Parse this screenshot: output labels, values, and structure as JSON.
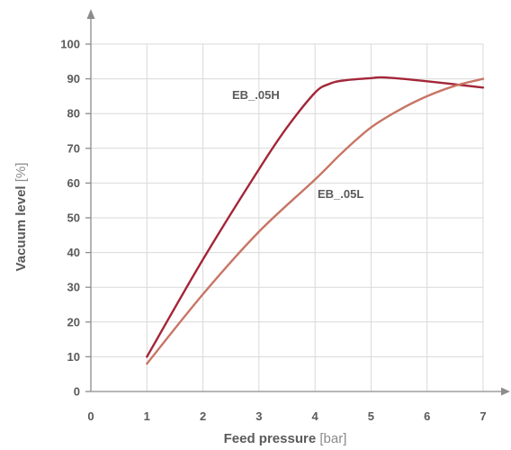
{
  "chart_data": {
    "type": "line",
    "xlabel": "Feed pressure",
    "xlabel_unit": "[bar]",
    "ylabel": "Vacuum level",
    "ylabel_unit": "[%]",
    "xlim": [
      0,
      7
    ],
    "ylim": [
      0,
      100
    ],
    "x_ticks": [
      "0",
      "1",
      "2",
      "3",
      "4",
      "5",
      "6",
      "7"
    ],
    "y_ticks": [
      "0",
      "10",
      "20",
      "30",
      "40",
      "50",
      "60",
      "70",
      "80",
      "90",
      "100"
    ],
    "grid": true,
    "series": [
      {
        "name": "EB_.05H",
        "color": "#a32638",
        "x": [
          1,
          2,
          3,
          3.5,
          4,
          4.25,
          4.5,
          5,
          5.25,
          6,
          7
        ],
        "y": [
          10,
          38,
          64,
          76,
          86,
          88.5,
          89.5,
          90.2,
          90.4,
          89.3,
          87.5
        ]
      },
      {
        "name": "EB_.05L",
        "color": "#c87565",
        "x": [
          1,
          2,
          3,
          4,
          4.5,
          5,
          5.5,
          6,
          6.5,
          7
        ],
        "y": [
          8,
          28,
          46,
          61,
          69,
          76,
          81,
          85,
          88,
          90
        ]
      }
    ]
  }
}
